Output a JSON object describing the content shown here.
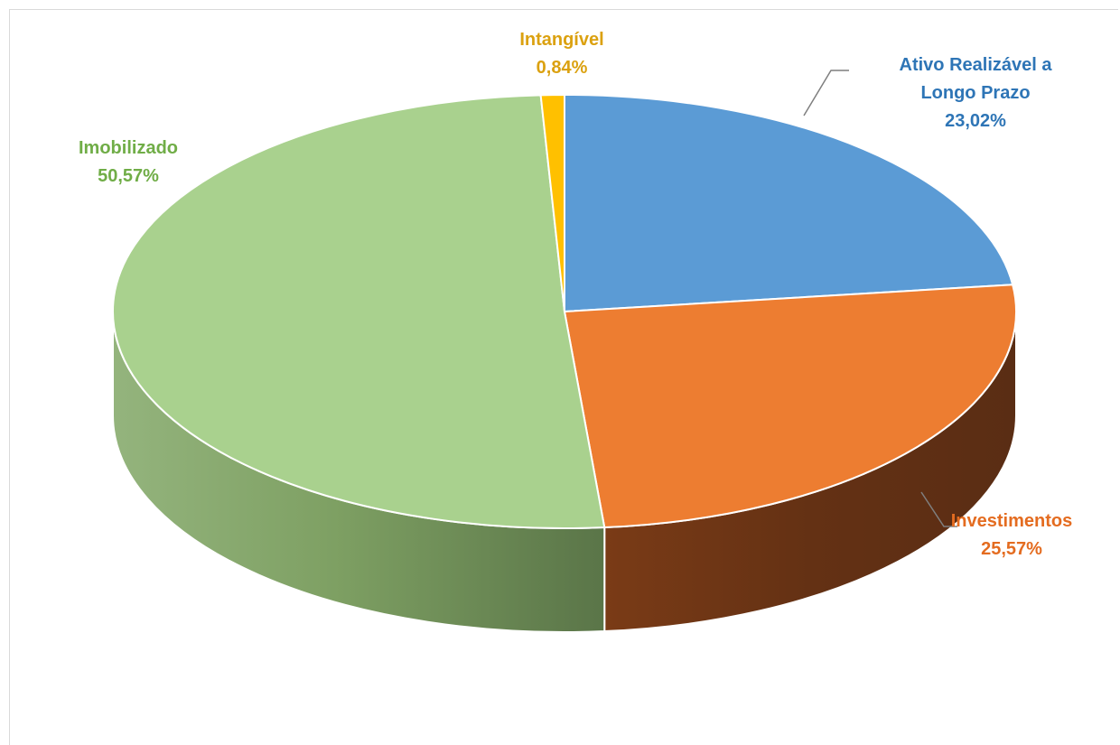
{
  "chart_data": {
    "type": "pie",
    "style": "3d",
    "title": "",
    "slices": [
      {
        "name": "Ativo Realizável a Longo Prazo",
        "label_lines": [
          "Ativo Realizável a",
          "Longo Prazo"
        ],
        "value": 23.02,
        "value_label": "23,02%",
        "color": "#5b9bd5",
        "side_color": "#3d6fa0",
        "label_color": "#2e75b6"
      },
      {
        "name": "Investimentos",
        "label_lines": [
          "Investimentos"
        ],
        "value": 25.57,
        "value_label": "25,57%",
        "color": "#ed7d31",
        "side_color": "#6b3415",
        "label_color": "#e46c20"
      },
      {
        "name": "Imobilizado",
        "label_lines": [
          "Imobilizado"
        ],
        "value": 50.57,
        "value_label": "50,57%",
        "color": "#a9d18e",
        "side_color": "#7a9c66",
        "label_color": "#70ad47"
      },
      {
        "name": "Intangível",
        "label_lines": [
          "Intangível"
        ],
        "value": 0.84,
        "value_label": "0,84%",
        "color": "#ffc000",
        "side_color": "#b38600",
        "label_color": "#dba110"
      }
    ],
    "leader_line_color": "#7f7f7f"
  }
}
